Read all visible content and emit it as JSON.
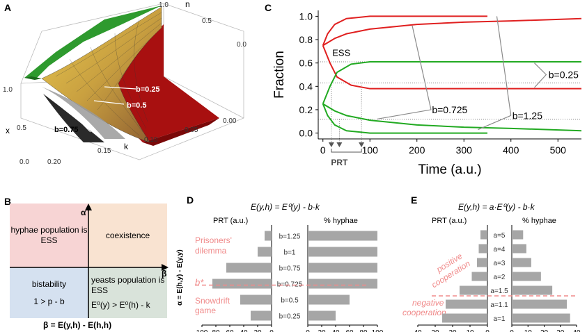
{
  "figure": {
    "panel_labels": {
      "a": "A",
      "b": "B",
      "c": "C",
      "d": "D",
      "e": "E"
    }
  },
  "panel_a": {
    "axis_n": "n",
    "axis_x": "x",
    "axis_k": "k",
    "n_ticks": [
      "1.0",
      "0.5",
      "0.0"
    ],
    "x_ticks": [
      "1.0",
      "0.5",
      "0.0"
    ],
    "k_ticks": [
      "0.20",
      "0.15",
      "0.10",
      "0.05",
      "0.00"
    ],
    "curve_labels": [
      "b=0.25",
      "b=0.5",
      "b=0.75"
    ]
  },
  "panel_b": {
    "alpha_label": "α = E(h,y) - E(y,y)",
    "alpha_symbol": "α",
    "beta_symbol": "β",
    "beta_label": "β = E(y,h) - E(h,h)",
    "q_top_left": "hyphae population is ESS",
    "q_top_right": "coexistence",
    "q_bottom_left_1": "bistability",
    "q_bottom_left_2": "1 > p - b",
    "q_bottom_right_1": "yeasts population is ESS",
    "q_bottom_right_2": "E⁰(y) > E⁰(h) - k",
    "colors": {
      "top_left": "#f7d4d4",
      "top_right": "#f9e3d1",
      "bottom_left": "#d5e1f0",
      "bottom_right": "#d9e3da"
    }
  },
  "panel_c": {
    "xlabel": "Time (a.u.)",
    "ylabel": "Fraction",
    "ess_label": "ESS",
    "prt_label": "PRT",
    "b_labels": [
      "b=0.25",
      "b=0.725",
      "b=1.25"
    ]
  },
  "panel_d": {
    "title": "E(y,h) = E⁰(y) - b·k",
    "left_header": "PRT (a.u.)",
    "right_header": "% hyphae",
    "top_note": "Prisoners' dilemma",
    "b_star": "b*",
    "bottom_note": "Snowdrift game"
  },
  "panel_e": {
    "title": "E(y,h) = a·E⁰(y) - b·k",
    "left_header": "PRT (a.u.)",
    "right_header": "% hyphae",
    "positive_note": "positive cooperation",
    "negative_note": "negative cooperation"
  },
  "chart_data": [
    {
      "type": "line",
      "panel": "C",
      "xlabel": "Time (a.u.)",
      "ylabel": "Fraction",
      "xlim": [
        -10,
        550
      ],
      "ylim": [
        -0.05,
        1.05
      ],
      "xticks": [
        0,
        100,
        200,
        300,
        400,
        500
      ],
      "yticks": [
        0.0,
        0.2,
        0.4,
        0.6,
        0.8,
        1.0
      ],
      "series": [
        {
          "name": "red b=0.25 upper",
          "color": "#e02020",
          "x": [
            0,
            10,
            25,
            50,
            100,
            200,
            350
          ],
          "y": [
            0.75,
            0.85,
            0.93,
            0.98,
            1.0,
            1.0,
            1.0
          ]
        },
        {
          "name": "red b=0.725 upper",
          "color": "#e02020",
          "x": [
            0,
            25,
            50,
            100,
            200,
            300,
            400,
            550
          ],
          "y": [
            0.75,
            0.81,
            0.85,
            0.89,
            0.93,
            0.95,
            0.96,
            0.98
          ]
        },
        {
          "name": "red b=0.25 lower",
          "color": "#e02020",
          "x": [
            0,
            15,
            30,
            60,
            100,
            200,
            550
          ],
          "y": [
            0.75,
            0.6,
            0.48,
            0.41,
            0.38,
            0.38,
            0.38
          ]
        },
        {
          "name": "green b=0.25 upper",
          "color": "#22aa22",
          "x": [
            0,
            15,
            30,
            60,
            100,
            200,
            550
          ],
          "y": [
            0.25,
            0.4,
            0.52,
            0.59,
            0.61,
            0.61,
            0.61
          ]
        },
        {
          "name": "green b=0.725 lower",
          "color": "#22aa22",
          "x": [
            0,
            25,
            50,
            100,
            200,
            300,
            400,
            550
          ],
          "y": [
            0.25,
            0.19,
            0.15,
            0.11,
            0.07,
            0.05,
            0.04,
            0.02
          ]
        },
        {
          "name": "green b=1.25 lower",
          "color": "#22aa22",
          "x": [
            0,
            10,
            25,
            50,
            100,
            200,
            350
          ],
          "y": [
            0.25,
            0.15,
            0.07,
            0.02,
            0.0,
            0.0,
            0.0
          ]
        }
      ],
      "annotations": [
        {
          "text": "ESS",
          "y": 0.61
        },
        {
          "text": "b=0.25",
          "x": 520,
          "y": 0.5
        },
        {
          "text": "b=0.725",
          "x": 230,
          "y": 0.2
        },
        {
          "text": "b=1.25",
          "x": 400,
          "y": 0.15
        },
        {
          "text": "PRT",
          "x": 25,
          "y": -0.15
        }
      ],
      "prt_arrows_x": [
        18,
        35,
        82
      ]
    },
    {
      "type": "bar",
      "panel": "D",
      "title": "E(y,h) = E⁰(y) - b·k",
      "categories": [
        "b=1.25",
        "b=1",
        "b=0.75",
        "b=0.725",
        "b=0.5",
        "b=0.25"
      ],
      "series": [
        {
          "name": "PRT (a.u.)",
          "direction": "left",
          "values": [
            10,
            20,
            65,
            85,
            45,
            30
          ]
        },
        {
          "name": "% hyphae",
          "direction": "right",
          "values": [
            100,
            100,
            100,
            100,
            60,
            40
          ]
        }
      ],
      "left_ticks": [
        100,
        80,
        60,
        40,
        20,
        0
      ],
      "right_ticks": [
        0,
        20,
        40,
        60,
        80,
        100
      ],
      "xlim": [
        0,
        100
      ],
      "ylabel": "α = E(h,y) - E(y,y)",
      "threshold": "b*"
    },
    {
      "type": "bar",
      "panel": "E",
      "title": "E(y,h) = a·E⁰(y) - b·k",
      "categories": [
        "a=5",
        "a=4",
        "a=3",
        "a=2",
        "a=1.5",
        "a=1.1",
        "a=1"
      ],
      "series": [
        {
          "name": "PRT (a.u.)",
          "direction": "left",
          "values": [
            4,
            5,
            6,
            9,
            16,
            24,
            26
          ]
        },
        {
          "name": "% hyphae",
          "direction": "right",
          "values": [
            7,
            9,
            12,
            18,
            25,
            34,
            36
          ]
        }
      ],
      "left_ticks": [
        40,
        30,
        20,
        10,
        0
      ],
      "right_ticks": [
        0,
        10,
        20,
        30,
        40
      ],
      "xlim": [
        0,
        40
      ]
    }
  ]
}
